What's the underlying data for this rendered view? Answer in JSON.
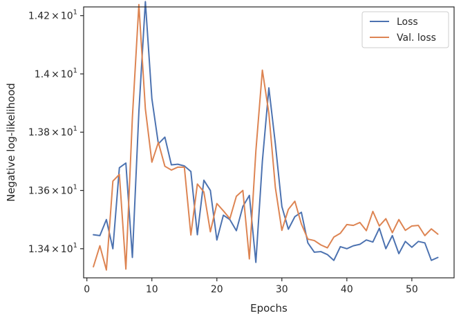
{
  "chart_data": {
    "type": "line",
    "xlabel": "Epochs",
    "ylabel": "Negative log-likelihood",
    "xlim": [
      -0.5,
      56.5
    ],
    "ylim": [
      13.3,
      14.23
    ],
    "x_ticks": [
      0,
      10,
      20,
      30,
      40,
      50
    ],
    "x_tick_labels": [
      "0",
      "10",
      "20",
      "30",
      "40",
      "50"
    ],
    "y_ticks": [
      13.4,
      13.6,
      13.8,
      14.0,
      14.2
    ],
    "y_tick_mantissas": [
      "1.34",
      "1.36",
      "1.38",
      "1.4",
      "1.42"
    ],
    "y_tick_times": "×",
    "y_tick_base": "10",
    "y_tick_exponent": "1",
    "legend_position": "top-right",
    "grid": false,
    "x": [
      1,
      2,
      3,
      4,
      5,
      6,
      7,
      8,
      9,
      10,
      11,
      12,
      13,
      14,
      15,
      16,
      17,
      18,
      19,
      20,
      21,
      22,
      23,
      24,
      25,
      26,
      27,
      28,
      29,
      30,
      31,
      32,
      33,
      34,
      35,
      36,
      37,
      38,
      39,
      40,
      41,
      42,
      43,
      44,
      45,
      46,
      47,
      48,
      49,
      50,
      51,
      52,
      53,
      54
    ],
    "series": [
      {
        "name": "Loss",
        "color": "#4c72b0",
        "values": [
          13.448,
          13.445,
          13.5,
          13.4,
          13.678,
          13.694,
          13.37,
          13.87,
          14.248,
          13.915,
          13.76,
          13.783,
          13.688,
          13.69,
          13.684,
          13.665,
          13.448,
          13.635,
          13.6,
          13.43,
          13.515,
          13.5,
          13.462,
          13.545,
          13.583,
          13.353,
          13.7,
          13.952,
          13.76,
          13.545,
          13.467,
          13.51,
          13.525,
          13.42,
          13.388,
          13.39,
          13.38,
          13.36,
          13.407,
          13.4,
          13.41,
          13.415,
          13.43,
          13.423,
          13.47,
          13.4,
          13.445,
          13.383,
          13.425,
          13.405,
          13.425,
          13.42,
          13.36,
          13.37
        ]
      },
      {
        "name": "Val. loss",
        "color": "#dd8452",
        "values": [
          13.338,
          13.41,
          13.327,
          13.632,
          13.655,
          13.33,
          13.85,
          14.238,
          13.88,
          13.697,
          13.765,
          13.683,
          13.67,
          13.68,
          13.68,
          13.447,
          13.622,
          13.595,
          13.458,
          13.555,
          13.53,
          13.503,
          13.58,
          13.6,
          13.365,
          13.735,
          14.013,
          13.865,
          13.61,
          13.463,
          13.535,
          13.563,
          13.485,
          13.433,
          13.428,
          13.413,
          13.403,
          13.44,
          13.453,
          13.483,
          13.48,
          13.49,
          13.462,
          13.528,
          13.478,
          13.503,
          13.455,
          13.5,
          13.463,
          13.478,
          13.48,
          13.445,
          13.468,
          13.45
        ]
      }
    ]
  }
}
